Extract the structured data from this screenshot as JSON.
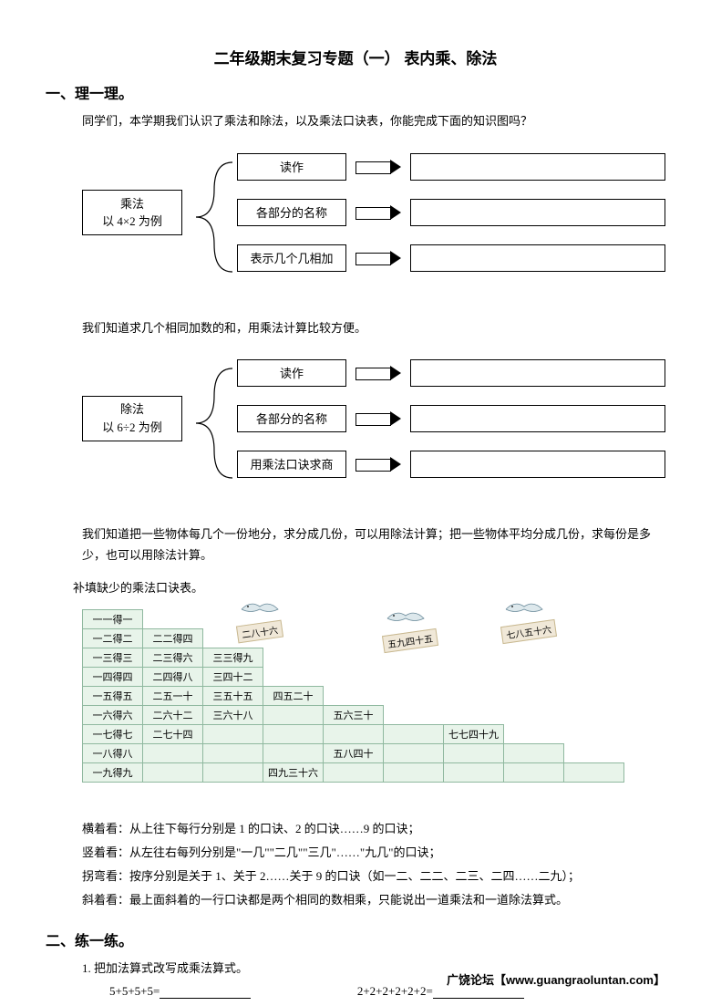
{
  "title": "二年级期末复习专题（一）  表内乘、除法",
  "section1": {
    "heading": "一、理一理。",
    "intro": "同学们，本学期我们认识了乘法和除法，以及乘法口诀表，你能完成下面的知识图吗？",
    "diagram1": {
      "root_line1": "乘法",
      "root_line2": "以 4×2 为例",
      "branches": [
        "读作",
        "各部分的名称",
        "表示几个几相加"
      ]
    },
    "mid1": "我们知道求几个相同加数的和，用乘法计算比较方便。",
    "diagram2": {
      "root_line1": "除法",
      "root_line2": "以 6÷2 为例",
      "branches": [
        "读作",
        "各部分的名称",
        "用乘法口诀求商"
      ]
    },
    "mid2": "我们知道把一些物体每几个一份地分，求分成几份，可以用除法计算；把一些物体平均分成几份，求每份是多少，也可以用除法计算。",
    "mid3": "补填缺少的乘法口诀表。",
    "table": {
      "colors": {
        "cell_bg": "#e8f4ea",
        "cell_border": "#8fb89f"
      },
      "rows": [
        [
          "一一得一"
        ],
        [
          "一二得二",
          "二二得四"
        ],
        [
          "一三得三",
          "二三得六",
          "三三得九"
        ],
        [
          "一四得四",
          "二四得八",
          "三四十二"
        ],
        [
          "一五得五",
          "二五一十",
          "三五十五",
          "四五二十"
        ],
        [
          "一六得六",
          "二六十二",
          "三六十八",
          "",
          "五六三十"
        ],
        [
          "一七得七",
          "二七十四",
          "",
          "",
          "",
          "",
          "七七四十九"
        ],
        [
          "一八得八",
          "",
          "",
          "",
          "五八四十",
          "",
          "",
          ""
        ],
        [
          "一九得九",
          "",
          "",
          "四九三十六",
          "",
          "",
          "",
          "",
          ""
        ]
      ]
    },
    "birds": [
      {
        "label": "二八十六"
      },
      {
        "label": "五九四十五"
      },
      {
        "label": "七八五十六"
      }
    ],
    "notes": [
      "横着看：从上往下每行分别是 1 的口诀、2 的口诀……9 的口诀；",
      "竖着看：从左往右每列分别是\"一几\"\"二几\"\"三几\"……\"九几\"的口诀；",
      "拐弯看：按序分别是关于 1、关于 2……关于 9 的口诀（如一二、二二、二三、二四……二九）；",
      "斜着看：最上面斜着的一行口诀都是两个相同的数相乘，只能说出一道乘法和一道除法算式。"
    ]
  },
  "section2": {
    "heading": "二、练一练。",
    "item1": "1. 把加法算式改写成乘法算式。",
    "eq1": "5+5+5+5=",
    "eq2": "2+2+2+2+2+2="
  },
  "footer": "广饶论坛【www.guangraoluntan.com】"
}
